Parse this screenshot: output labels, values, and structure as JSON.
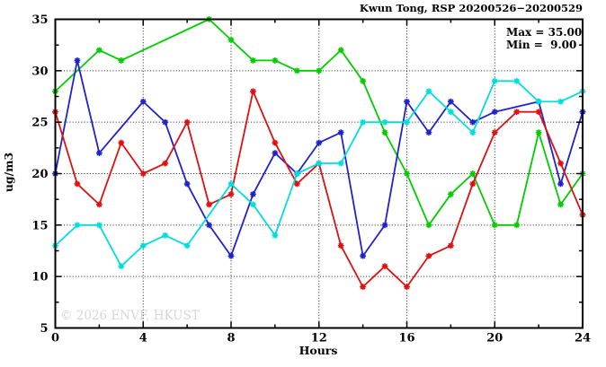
{
  "header": {
    "title": "Kwun Tong, RSP 20200526−20200529"
  },
  "stats": {
    "max_label": "Max = 35.00",
    "min_label": "Min =  9.00"
  },
  "watermark": "© 2026 ENVF, HKUST",
  "chart_data": {
    "type": "line",
    "title": "Kwun Tong, RSP 20200526−20200529",
    "xlabel": "Hours",
    "ylabel": "ug/m3",
    "xlim": [
      0,
      24
    ],
    "ylim": [
      5,
      35
    ],
    "x_ticks_major": [
      0,
      4,
      8,
      12,
      16,
      20,
      24
    ],
    "x_minor_step": 2,
    "y_ticks_major": [
      5,
      10,
      15,
      20,
      25,
      30,
      35
    ],
    "y_minor_step": 2.5,
    "grid_x": [
      4,
      8,
      12,
      16,
      20
    ],
    "grid_y": [
      10,
      15,
      20,
      25,
      30
    ],
    "grid": "dotted",
    "legend_position": "none",
    "marker": "asterisk",
    "max": 35.0,
    "min": 9.0,
    "hours": [
      0,
      1,
      2,
      3,
      4,
      5,
      6,
      7,
      8,
      9,
      10,
      11,
      12,
      13,
      14,
      15,
      16,
      17,
      18,
      19,
      20,
      21,
      22,
      23,
      24
    ],
    "series": [
      {
        "name": "green",
        "color": "#00CC00",
        "values": [
          28,
          null,
          32,
          31,
          null,
          null,
          null,
          35,
          33,
          31,
          31,
          30,
          30,
          32,
          29,
          24,
          20,
          15,
          18,
          20,
          15,
          15,
          24,
          17,
          20
        ]
      },
      {
        "name": "blue",
        "color": "#2222CC",
        "values": [
          20,
          31,
          22,
          null,
          27,
          25,
          19,
          15,
          12,
          18,
          22,
          20,
          23,
          24,
          12,
          15,
          27,
          24,
          27,
          25,
          26,
          null,
          27,
          19,
          26
        ]
      },
      {
        "name": "red",
        "color": "#DD1111",
        "values": [
          26,
          19,
          17,
          23,
          20,
          21,
          25,
          17,
          18,
          28,
          23,
          19,
          21,
          13,
          9,
          11,
          9,
          12,
          13,
          19,
          24,
          26,
          26,
          21,
          16
        ]
      },
      {
        "name": "cyan",
        "color": "#00DDDD",
        "values": [
          13,
          15,
          15,
          11,
          13,
          14,
          13,
          null,
          19,
          17,
          14,
          20,
          21,
          21,
          25,
          25,
          25,
          28,
          26,
          24,
          29,
          29,
          27,
          27,
          28
        ]
      }
    ]
  }
}
